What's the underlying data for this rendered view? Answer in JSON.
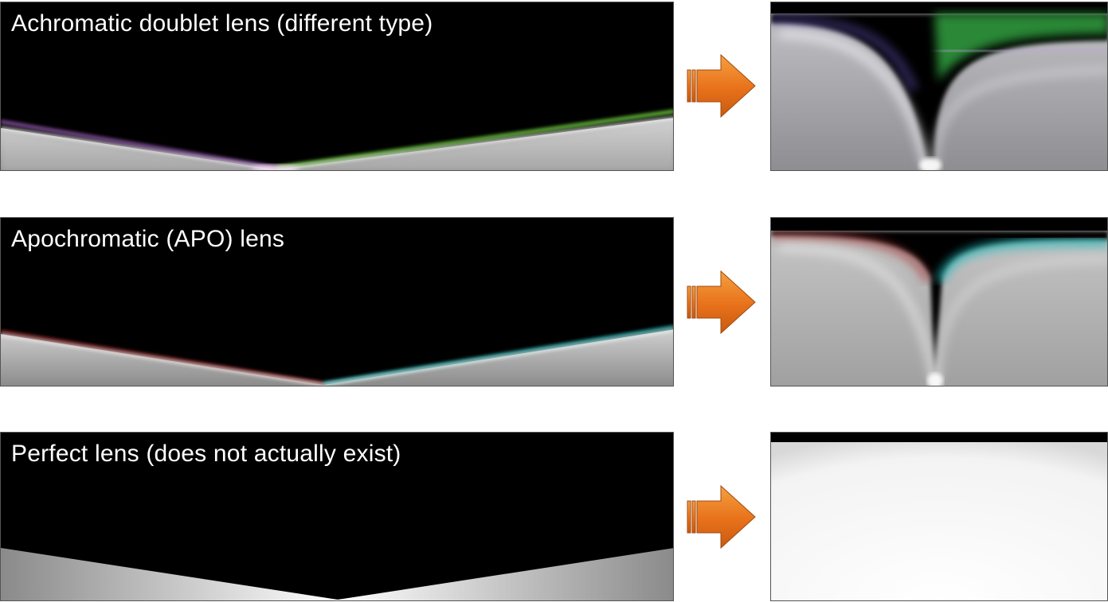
{
  "rows": [
    {
      "caption": "Achromatic doublet lens (different type)",
      "arrow_color": "#e8711a"
    },
    {
      "caption": "Apochromatic (APO) lens",
      "arrow_color": "#e8711a"
    },
    {
      "caption": "Perfect lens (does not actually exist)",
      "arrow_color": "#e8711a"
    }
  ]
}
